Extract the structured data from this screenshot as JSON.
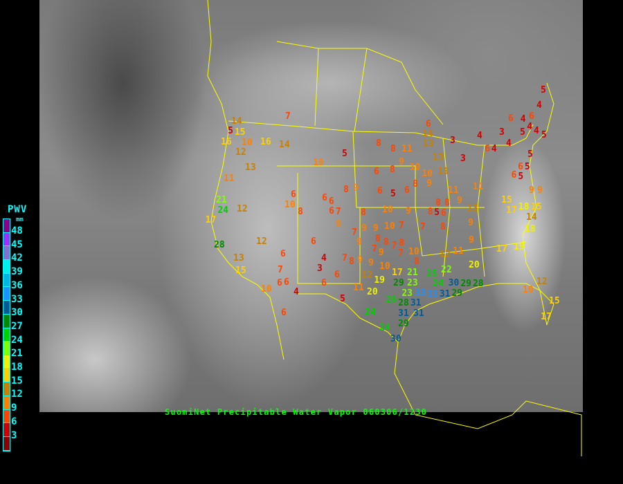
{
  "title": "SuomiNet Precipitable Water Vapor 060306/1230",
  "legend": {
    "title": "PWV",
    "unit": "mm",
    "labels": [
      "48",
      "45",
      "42",
      "39",
      "36",
      "33",
      "30",
      "27",
      "24",
      "21",
      "18",
      "15",
      "12",
      "9",
      "6",
      "3"
    ],
    "colors": [
      "#8b008b",
      "#9a32ff",
      "#8470d0",
      "#00eeee",
      "#00b4e6",
      "#1e90ff",
      "#005a96",
      "#008800",
      "#00d000",
      "#80ff00",
      "#f0f000",
      "#ffd000",
      "#c88000",
      "#ff8000",
      "#ff4500",
      "#d00000",
      "#8b0000"
    ]
  },
  "stations": [
    "14",
    "5",
    "15",
    "16",
    "10",
    "16",
    "14",
    "12",
    "13",
    "11",
    "7",
    "10",
    "5",
    "21",
    "24",
    "12",
    "17",
    "28",
    "12",
    "13",
    "15",
    "10",
    "6",
    "6",
    "7",
    "6",
    "6",
    "4",
    "10",
    "8",
    "6",
    "6",
    "6",
    "6",
    "7",
    "9",
    "7",
    "6",
    "4",
    "3",
    "6",
    "6",
    "5",
    "9",
    "9",
    "7",
    "8",
    "8",
    "8",
    "11",
    "6",
    "13",
    "9",
    "10",
    "10",
    "6",
    "8",
    "8",
    "9",
    "6",
    "5",
    "6",
    "8",
    "9",
    "8",
    "10",
    "9",
    "8",
    "6",
    "9",
    "10",
    "7",
    "9",
    "8",
    "7",
    "9",
    "8",
    "7",
    "8",
    "10",
    "8",
    "7",
    "7",
    "8",
    "9",
    "9",
    "12",
    "11",
    "20",
    "22",
    "25",
    "24",
    "29",
    "23",
    "21",
    "17",
    "12",
    "19",
    "20",
    "11",
    "10",
    "9",
    "23",
    "26",
    "28",
    "33",
    "33",
    "31",
    "30",
    "29",
    "28",
    "29",
    "31",
    "31",
    "31",
    "29",
    "24",
    "24",
    "30",
    "17",
    "19",
    "18",
    "14",
    "15",
    "15",
    "17",
    "18",
    "11",
    "11",
    "9",
    "13",
    "8",
    "8",
    "5",
    "6",
    "4",
    "6",
    "4",
    "5",
    "4",
    "5",
    "3",
    "4",
    "4",
    "3",
    "3",
    "6",
    "4",
    "5",
    "6",
    "5",
    "5",
    "4",
    "6",
    "5",
    "9",
    "9",
    "14",
    "13",
    "13",
    "12",
    "10",
    "15",
    "17",
    "22",
    "21"
  ]
}
